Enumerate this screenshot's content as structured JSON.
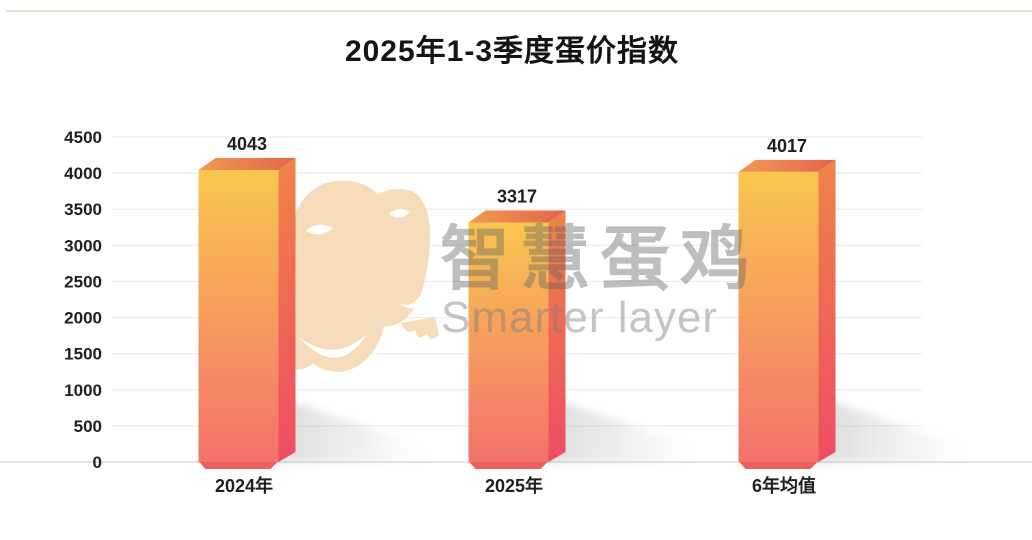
{
  "page": {
    "background": "#ffffff",
    "top_line_color": "#dcdcc6"
  },
  "chart_data": {
    "type": "bar",
    "title": "2025年1-3季度蛋价指数",
    "categories": [
      "2024年",
      "2025年",
      "6年均值"
    ],
    "values": [
      4043,
      3317,
      4017
    ],
    "xlabel": "",
    "ylabel": "",
    "ylim": [
      0,
      4500
    ],
    "ytick_step": 500,
    "yticks": [
      0,
      500,
      1000,
      1500,
      2000,
      2500,
      3000,
      3500,
      4000,
      4500
    ],
    "grid": true,
    "legend": false,
    "bar_style": "3d-gradient-orange-coral",
    "value_labels_shown": true
  },
  "watermark": {
    "logo_icon": "chicken-heads-icon",
    "text_cn": "智慧蛋鸡",
    "text_en": "Smarter layer"
  },
  "colors": {
    "title_text": "#141414",
    "axis_text": "#1f1f1f",
    "gridline": "#ededed",
    "baseline": "#dcdcdc",
    "bar_front_top": "#f9c64f",
    "bar_front_bottom": "#f3716c",
    "bar_side_top": "#ee8348",
    "bar_side_bottom": "#ee4d62",
    "bar_top_left": "#f2994f",
    "bar_top_right": "#e2654c",
    "bar_bottom_face": "#eb5f5c",
    "shadow": "#8c8c8c",
    "watermark_cn": "rgba(100,100,100,0.42)",
    "watermark_en": "rgba(125,125,125,0.45)",
    "logo_fill": "#f7dcbb"
  }
}
